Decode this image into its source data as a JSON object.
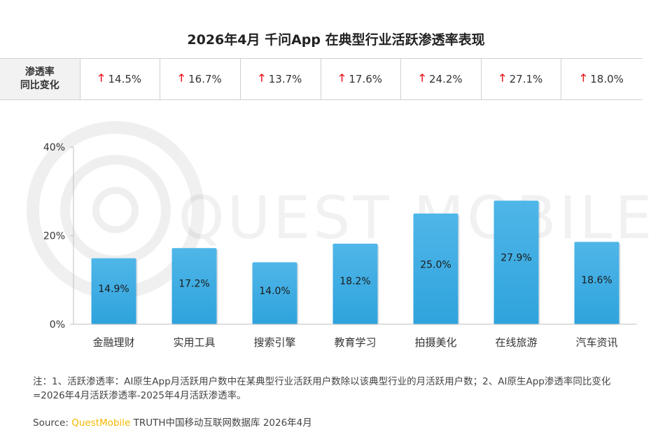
{
  "title": "2026年4月 千问App 在典型行业活跃渗透率表现",
  "change_row": {
    "header_line1": "渗透率",
    "header_line2": "同比变化",
    "values": [
      "14.5%",
      "16.7%",
      "13.7%",
      "17.6%",
      "24.2%",
      "27.1%",
      "18.0%"
    ],
    "arrow_icon": "arrow-up-icon",
    "arrow_color": "#e8141a"
  },
  "watermark": "QUEST MOBILE",
  "chart_data": {
    "type": "bar",
    "categories": [
      "金融理财",
      "实用工具",
      "搜索引擎",
      "教育学习",
      "拍摄美化",
      "在线旅游",
      "汽车资讯"
    ],
    "values": [
      14.9,
      17.2,
      14.0,
      18.2,
      25.0,
      27.9,
      18.6
    ],
    "data_labels": [
      "14.9%",
      "17.2%",
      "14.0%",
      "18.2%",
      "25.0%",
      "27.9%",
      "18.6%"
    ],
    "ylim": [
      0,
      40
    ],
    "y_ticks": [
      0,
      20,
      40
    ],
    "y_tick_labels": [
      "0%",
      "20%",
      "40%"
    ],
    "bar_color": "#2fa3dd",
    "bar_color_light": "#4fb6e8",
    "grid": false
  },
  "footnote": "注：1、活跃渗透率：AI原生App月活跃用户数中在某典型行业活跃用户数除以该典型行业的月活跃用户数；2、AI原生App渗透率同比变化=2026年4月活跃渗透率-2025年4月活跃渗透率。",
  "source": {
    "prefix": "Source:",
    "brand": "QuestMobile",
    "text": "TRUTH中国移动互联网数据库 2026年4月",
    "brand_color": "#f5b800"
  }
}
